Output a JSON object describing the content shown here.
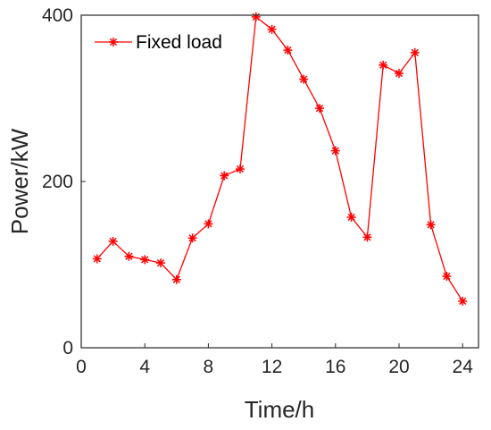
{
  "chart_data": {
    "type": "line",
    "xlabel": "Time/h",
    "ylabel": "Power/kW",
    "xlim": [
      0,
      25
    ],
    "ylim": [
      0,
      400
    ],
    "x_ticks": [
      0,
      4,
      8,
      12,
      16,
      20,
      24
    ],
    "y_ticks": [
      0,
      200,
      400
    ],
    "grid": false,
    "legend_position": "top-left",
    "series": [
      {
        "name": "Fixed load",
        "color": "#ff0000",
        "marker": "asterisk",
        "x": [
          1,
          2,
          3,
          4,
          5,
          6,
          7,
          8,
          9,
          10,
          11,
          12,
          13,
          14,
          15,
          16,
          17,
          18,
          19,
          20,
          21,
          22,
          23,
          24
        ],
        "y": [
          107,
          128,
          110,
          106,
          102,
          82,
          132,
          149,
          207,
          215,
          398,
          383,
          358,
          323,
          288,
          237,
          157,
          133,
          340,
          330,
          355,
          148,
          86,
          56
        ]
      }
    ]
  }
}
